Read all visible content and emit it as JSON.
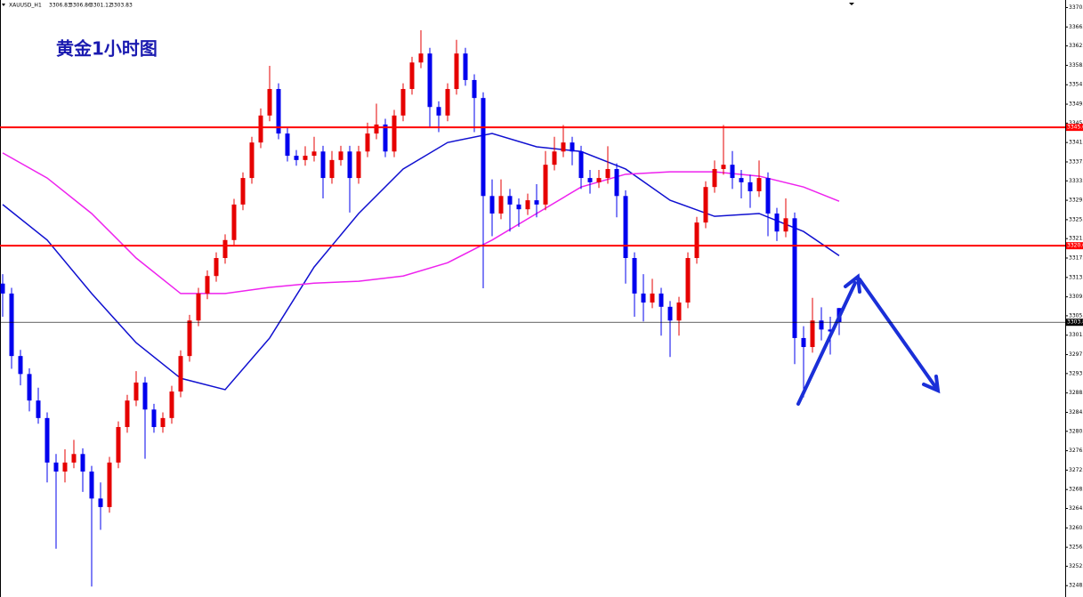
{
  "chart_data": {
    "type": "candlestick",
    "title": "黄金1小时图",
    "symbol": "XAUUSD_H1",
    "ylim": [
      3245.8,
      3371.9
    ],
    "yticks": [
      3370.3,
      3366.2,
      3362.2,
      3358.1,
      3354,
      3349.9,
      3345.9,
      3341.8,
      3337.7,
      3333.7,
      3329.6,
      3325.5,
      3321.5,
      3317.4,
      3313.3,
      3309.2,
      3305.2,
      3301.1,
      3297,
      3293,
      3288.9,
      3284.8,
      3280.8,
      3276.7,
      3272.6,
      3268.5,
      3264.5,
      3260.4,
      3256.3,
      3252.3,
      3248.2
    ],
    "up_color": "#e60000",
    "down_color": "#0000ee",
    "candles": [
      [
        3312.0,
        3314.0,
        3305.0,
        3309.9
      ],
      [
        3309.9,
        3311.1,
        3294.0,
        3296.7
      ],
      [
        3296.7,
        3298.0,
        3290.5,
        3292.9
      ],
      [
        3292.9,
        3294.1,
        3285.0,
        3287.3
      ],
      [
        3287.3,
        3290.0,
        3282.4,
        3283.6
      ],
      [
        3283.6,
        3284.8,
        3270.0,
        3274.2
      ],
      [
        3274.2,
        3276.0,
        3256.0,
        3272.3
      ],
      [
        3272.3,
        3277.0,
        3270.0,
        3274.2
      ],
      [
        3274.2,
        3279.0,
        3273.0,
        3276.0
      ],
      [
        3276.0,
        3277.2,
        3268.0,
        3272.3
      ],
      [
        3272.3,
        3273.5,
        3248.0,
        3266.6
      ],
      [
        3266.6,
        3270.0,
        3260.0,
        3264.8
      ],
      [
        3264.8,
        3275.4,
        3263.6,
        3274.2
      ],
      [
        3274.2,
        3282.9,
        3273.0,
        3281.7
      ],
      [
        3281.7,
        3288.5,
        3280.5,
        3287.3
      ],
      [
        3287.3,
        3293.5,
        3286.1,
        3291.1
      ],
      [
        3291.1,
        3292.3,
        3275.0,
        3285.4
      ],
      [
        3285.4,
        3286.6,
        3280.5,
        3281.7
      ],
      [
        3281.7,
        3284.8,
        3280.5,
        3283.6
      ],
      [
        3283.6,
        3290.4,
        3282.4,
        3289.2
      ],
      [
        3289.2,
        3297.9,
        3288.0,
        3296.7
      ],
      [
        3296.7,
        3305.4,
        3295.5,
        3304.2
      ],
      [
        3304.2,
        3311.1,
        3303.0,
        3309.9
      ],
      [
        3309.9,
        3314.8,
        3308.7,
        3313.6
      ],
      [
        3313.6,
        3318.6,
        3312.4,
        3317.4
      ],
      [
        3317.4,
        3322.4,
        3316.2,
        3321.2
      ],
      [
        3321.2,
        3329.9,
        3320.0,
        3328.7
      ],
      [
        3328.7,
        3335.5,
        3327.5,
        3334.3
      ],
      [
        3334.3,
        3343.0,
        3333.1,
        3341.8
      ],
      [
        3341.8,
        3349.0,
        3340.6,
        3347.5
      ],
      [
        3347.5,
        3358.0,
        3346.3,
        3353.1
      ],
      [
        3353.1,
        3354.3,
        3342.5,
        3343.7
      ],
      [
        3343.7,
        3344.9,
        3337.8,
        3339.0
      ],
      [
        3339.0,
        3340.2,
        3336.9,
        3338.1
      ],
      [
        3338.1,
        3341.0,
        3336.9,
        3339.0
      ],
      [
        3339.0,
        3343.0,
        3337.8,
        3339.9
      ],
      [
        3339.9,
        3341.1,
        3330.0,
        3334.3
      ],
      [
        3334.3,
        3340.0,
        3333.1,
        3338.1
      ],
      [
        3338.1,
        3341.1,
        3336.9,
        3339.9
      ],
      [
        3339.9,
        3341.1,
        3327.0,
        3334.3
      ],
      [
        3334.3,
        3341.1,
        3333.1,
        3339.9
      ],
      [
        3339.9,
        3346.0,
        3338.7,
        3343.7
      ],
      [
        3343.7,
        3350.0,
        3342.5,
        3345.6
      ],
      [
        3345.6,
        3346.8,
        3338.7,
        3339.9
      ],
      [
        3339.9,
        3348.7,
        3338.7,
        3347.5
      ],
      [
        3347.5,
        3354.3,
        3346.3,
        3353.1
      ],
      [
        3353.1,
        3359.9,
        3351.9,
        3358.7
      ],
      [
        3358.7,
        3365.5,
        3357.5,
        3360.6
      ],
      [
        3360.6,
        3361.8,
        3345.0,
        3349.3
      ],
      [
        3349.3,
        3350.5,
        3344.0,
        3347.5
      ],
      [
        3347.5,
        3354.3,
        3346.3,
        3353.1
      ],
      [
        3353.1,
        3363.5,
        3351.9,
        3360.6
      ],
      [
        3360.6,
        3361.8,
        3353.8,
        3355.0
      ],
      [
        3355.0,
        3356.2,
        3344.0,
        3351.2
      ],
      [
        3351.2,
        3352.4,
        3311.0,
        3330.5
      ],
      [
        3330.5,
        3334.0,
        3322.0,
        3326.8
      ],
      [
        3326.8,
        3334.0,
        3325.6,
        3330.5
      ],
      [
        3330.5,
        3332.0,
        3323.0,
        3328.7
      ],
      [
        3328.7,
        3330.0,
        3324.0,
        3327.7
      ],
      [
        3327.7,
        3331.0,
        3326.5,
        3329.6
      ],
      [
        3329.6,
        3333.0,
        3326.0,
        3328.7
      ],
      [
        3328.7,
        3340.0,
        3327.5,
        3337.1
      ],
      [
        3337.1,
        3343.0,
        3335.9,
        3339.9
      ],
      [
        3339.9,
        3345.5,
        3338.7,
        3341.8
      ],
      [
        3341.8,
        3343.0,
        3337.0,
        3339.9
      ],
      [
        3339.9,
        3341.1,
        3332.0,
        3334.3
      ],
      [
        3334.3,
        3336.0,
        3331.0,
        3333.4
      ],
      [
        3333.4,
        3336.0,
        3332.2,
        3334.3
      ],
      [
        3334.3,
        3341.0,
        3333.1,
        3336.2
      ],
      [
        3336.2,
        3337.4,
        3326.0,
        3330.5
      ],
      [
        3330.5,
        3331.7,
        3312.0,
        3317.4
      ],
      [
        3317.4,
        3318.6,
        3305.0,
        3309.9
      ],
      [
        3309.9,
        3314.0,
        3304.0,
        3308.0
      ],
      [
        3308.0,
        3313.0,
        3306.8,
        3309.9
      ],
      [
        3309.9,
        3311.1,
        3301.0,
        3307.1
      ],
      [
        3307.1,
        3308.3,
        3296.5,
        3304.2
      ],
      [
        3304.2,
        3309.2,
        3301.0,
        3308.0
      ],
      [
        3308.0,
        3318.6,
        3306.8,
        3317.4
      ],
      [
        3317.4,
        3326.1,
        3316.2,
        3324.9
      ],
      [
        3324.9,
        3333.6,
        3323.7,
        3332.4
      ],
      [
        3332.4,
        3338.0,
        3331.2,
        3336.2
      ],
      [
        3336.2,
        3345.5,
        3335.0,
        3337.1
      ],
      [
        3337.1,
        3340.0,
        3332.0,
        3334.3
      ],
      [
        3334.3,
        3336.0,
        3330.0,
        3333.4
      ],
      [
        3333.4,
        3335.0,
        3328.0,
        3331.5
      ],
      [
        3331.5,
        3338.0,
        3330.3,
        3334.3
      ],
      [
        3334.3,
        3335.5,
        3322.0,
        3326.8
      ],
      [
        3326.8,
        3328.0,
        3321.0,
        3323.0
      ],
      [
        3323.0,
        3330.0,
        3321.8,
        3325.8
      ],
      [
        3325.8,
        3327.0,
        3295.0,
        3300.5
      ],
      [
        3300.5,
        3303.0,
        3288.0,
        3298.6
      ],
      [
        3298.6,
        3309.0,
        3297.4,
        3304.2
      ],
      [
        3304.2,
        3307.0,
        3300.0,
        3302.3
      ],
      [
        3302.3,
        3305.0,
        3297.0,
        3301.9
      ],
      [
        3306.83,
        3306.86,
        3301.12,
        3303.83
      ]
    ],
    "moving_averages": [
      {
        "color": "#1010d0",
        "x": [
          0,
          5,
          10,
          15,
          20,
          25,
          30,
          35,
          40,
          45,
          50,
          55,
          60,
          65,
          70,
          75,
          80,
          85,
          90,
          94
        ],
        "values": [
          3328.7,
          3321.2,
          3309.9,
          3299.5,
          3292.0,
          3289.6,
          3300.5,
          3315.5,
          3326.8,
          3336.2,
          3341.8,
          3343.7,
          3340.9,
          3339.9,
          3336.2,
          3329.6,
          3326.2,
          3326.8,
          3323.0,
          3317.9
        ]
      },
      {
        "color": "#ee22ee",
        "x": [
          0,
          5,
          10,
          15,
          20,
          25,
          30,
          35,
          40,
          45,
          50,
          55,
          60,
          65,
          70,
          75,
          80,
          85,
          90,
          94
        ],
        "values": [
          3339.6,
          3334.3,
          3326.8,
          3317.4,
          3309.9,
          3309.9,
          3311.2,
          3312.1,
          3312.5,
          3313.6,
          3316.4,
          3321.2,
          3326.8,
          3332.4,
          3335.1,
          3335.6,
          3335.6,
          3334.7,
          3332.4,
          3329.4
        ]
      }
    ],
    "levels": [
      {
        "value": 3345,
        "label": "3345.0",
        "color": "#ff0000"
      },
      {
        "value": 3320,
        "label": "3320.0",
        "color": "#ff0000"
      },
      {
        "value": 3303.83,
        "label": "3303.83",
        "color": "#000000"
      }
    ]
  }
}
